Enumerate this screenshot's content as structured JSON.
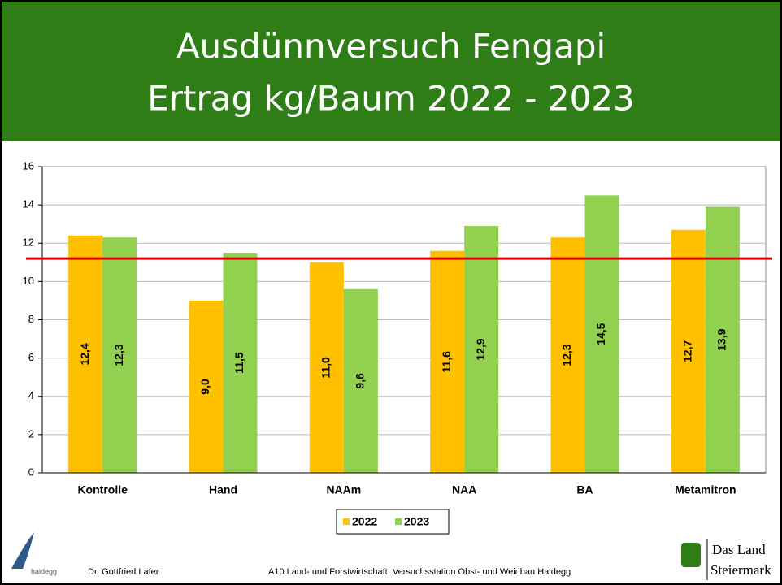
{
  "chart_data": {
    "type": "bar",
    "title_lines": [
      "Ausdünnversuch Fengapi",
      "Ertrag kg/Baum 2022 - 2023"
    ],
    "categories": [
      "Kontrolle",
      "Hand",
      "NAAm",
      "NAA",
      "BA",
      "Metamitron"
    ],
    "series": [
      {
        "name": "2022",
        "color": "#ffc000",
        "values": [
          12.4,
          9.0,
          11.0,
          11.6,
          12.3,
          12.7
        ],
        "value_labels": [
          "12,4",
          "9,0",
          "11,0",
          "11,6",
          "12,3",
          "12,7"
        ]
      },
      {
        "name": "2023",
        "color": "#92d050",
        "values": [
          12.3,
          11.5,
          9.6,
          12.9,
          14.5,
          13.9
        ],
        "value_labels": [
          "12,3",
          "11,5",
          "9,6",
          "12,9",
          "14,5",
          "13,9"
        ]
      }
    ],
    "reference_line": {
      "value": 11.2,
      "color": "#e00000"
    },
    "ylim": [
      0,
      16
    ],
    "yticks": [
      0,
      2,
      4,
      6,
      8,
      10,
      12,
      14,
      16
    ],
    "grid": true,
    "legend": "bottom"
  },
  "footer": {
    "logo_left": "haidegg",
    "author": "Dr. Gottfried Lafer",
    "institution": "A10 Land- und Forstwirtschaft, Versuchsstation Obst- und Weinbau Haidegg",
    "logo_right": [
      "Das Land",
      "Steiermark"
    ]
  }
}
